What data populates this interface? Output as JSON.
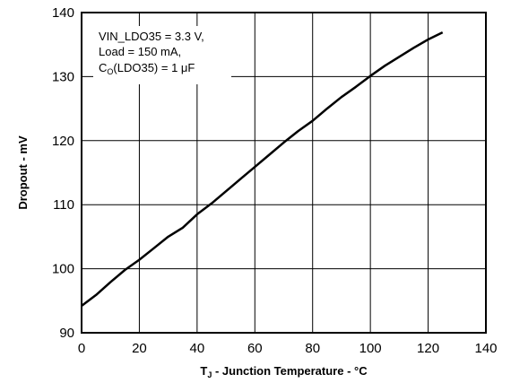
{
  "chart_data": {
    "type": "line",
    "xlabel": {
      "main": "T",
      "sub": "J",
      "rest": " - Junction Temperature - °C"
    },
    "ylabel": "Dropout - mV",
    "xlim": [
      0,
      140
    ],
    "ylim": [
      90,
      140
    ],
    "x_ticks": [
      "0",
      "20",
      "40",
      "60",
      "80",
      "100",
      "120",
      "140"
    ],
    "y_ticks": [
      "90",
      "100",
      "110",
      "120",
      "130",
      "140"
    ],
    "grid": true,
    "annotation": {
      "line1": "VIN_LDO35 = 3.3 V,",
      "line2": "Load = 150 mA,",
      "line3_main": "C",
      "line3_sub": "O",
      "line3_rest": "(LDO35) = 1 μF"
    },
    "series": [
      {
        "x": [
          0,
          5,
          10,
          15,
          20,
          25,
          30,
          35,
          40,
          45,
          50,
          55,
          60,
          65,
          70,
          75,
          80,
          85,
          90,
          95,
          100,
          105,
          110,
          115,
          120,
          125
        ],
        "y": [
          94.2,
          95.9,
          97.9,
          99.8,
          101.4,
          103.2,
          105.0,
          106.4,
          108.5,
          110.2,
          112.1,
          114.0,
          115.9,
          117.8,
          119.7,
          121.5,
          123.1,
          125.0,
          126.8,
          128.4,
          130.1,
          131.7,
          133.1,
          134.5,
          135.8,
          136.9
        ]
      }
    ]
  }
}
